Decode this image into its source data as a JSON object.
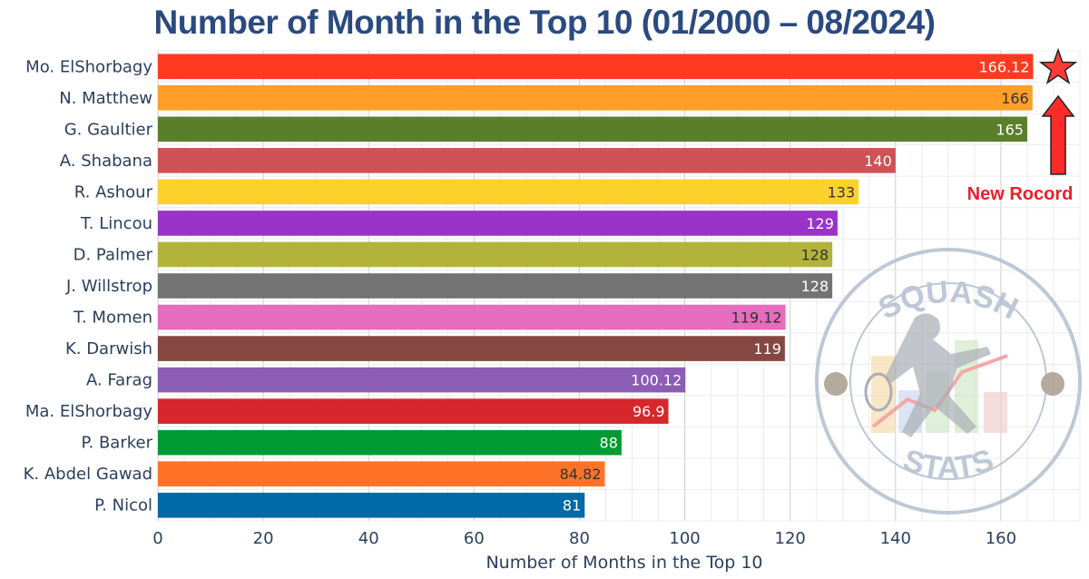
{
  "chart_data": {
    "type": "bar",
    "orientation": "horizontal",
    "title": "Number of Month in the Top 10 (01/2000 – 08/2024)",
    "xlabel": "Number of Months in the Top 10",
    "ylabel": "",
    "xlim": [
      0,
      175
    ],
    "xticks": [
      0,
      20,
      40,
      60,
      80,
      100,
      120,
      140,
      160
    ],
    "grid": true,
    "categories": [
      "Mo. ElShorbagy",
      "N. Matthew",
      "G. Gaultier",
      "A. Shabana",
      "R. Ashour",
      "T. Lincou",
      "D. Palmer",
      "J. Willstrop",
      "T. Momen",
      "K. Darwish",
      "A. Farag",
      "Ma. ElShorbagy",
      "P. Barker",
      "K. Abdel Gawad",
      "P. Nicol"
    ],
    "values": [
      166.12,
      166,
      165,
      140,
      133,
      129,
      128,
      128,
      119.12,
      119,
      100.12,
      96.9,
      88,
      84.82,
      81
    ],
    "value_labels": [
      "166.12",
      "166",
      "165",
      "140",
      "133",
      "129",
      "128",
      "128",
      "119.12",
      "119",
      "100.12",
      "96.9",
      "88",
      "84.82",
      "81"
    ],
    "colors": [
      "#ff3a21",
      "#ff9f2a",
      "#5a7f2b",
      "#cf5257",
      "#fdd12c",
      "#9a33c7",
      "#b2b33a",
      "#737373",
      "#e56cbe",
      "#864741",
      "#8b5db5",
      "#d6282c",
      "#009a33",
      "#fe7327",
      "#0069a8"
    ],
    "label_colors": [
      "#ffffff",
      "#333333",
      "#ffffff",
      "#ffffff",
      "#333333",
      "#ffffff",
      "#333333",
      "#ffffff",
      "#333333",
      "#ffffff",
      "#ffffff",
      "#ffffff",
      "#ffffff",
      "#333333",
      "#ffffff"
    ],
    "annotations": {
      "record_text": "New Rocord",
      "record_color": "#e8202a",
      "marker": "star-icon",
      "arrow": "up-arrow-icon"
    },
    "watermark": {
      "top_text": "SQUASH",
      "bottom_text": "STATS",
      "color": "#b3bfcf"
    }
  }
}
